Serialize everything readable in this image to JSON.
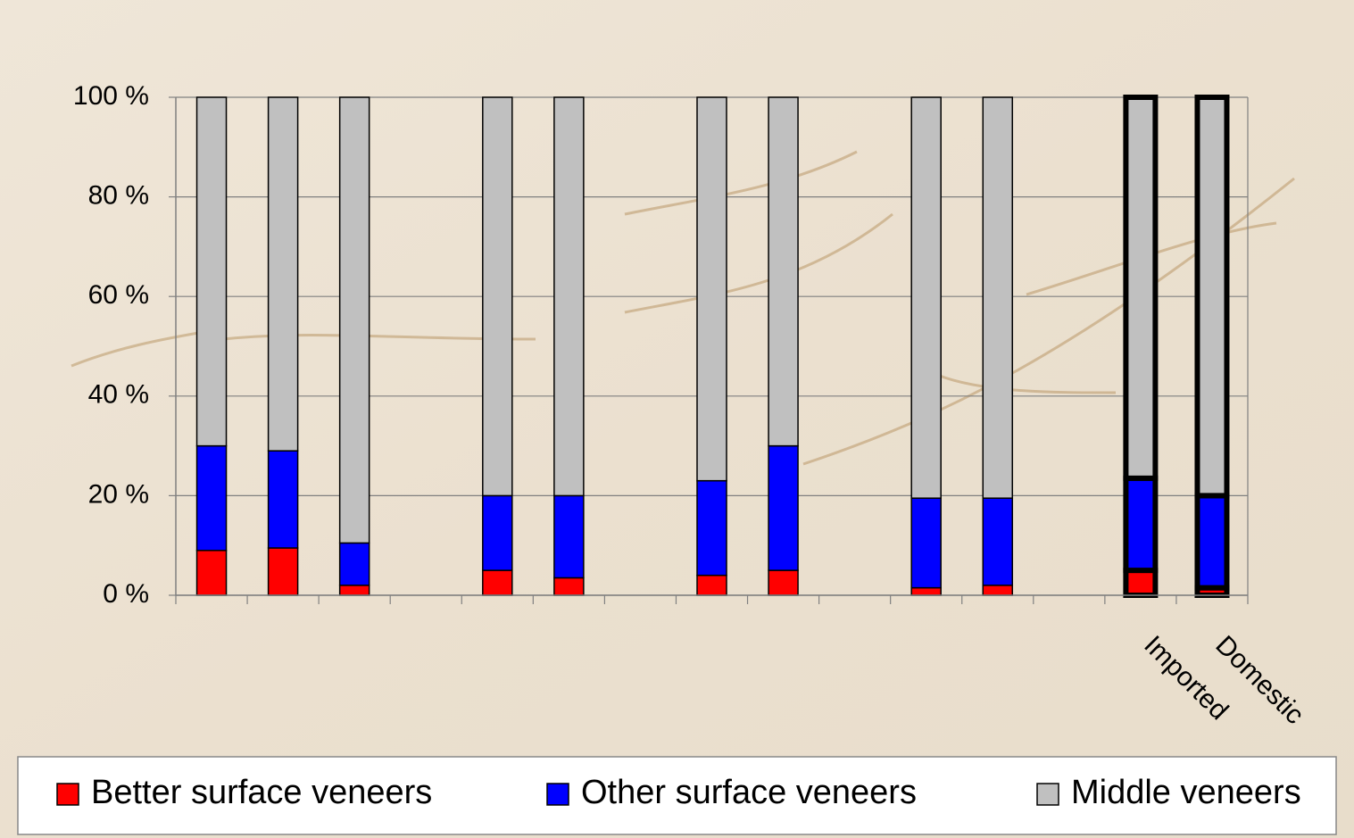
{
  "chart_data": {
    "type": "stacked-bar",
    "categories": [
      null,
      null,
      null,
      null,
      null,
      null,
      null,
      null,
      null,
      null,
      null,
      null,
      null,
      "Imported",
      "Domestic"
    ],
    "series": [
      {
        "name": "Better surface veneers",
        "color": "#ff0000",
        "values": [
          9,
          9.5,
          2,
          null,
          5,
          3.5,
          null,
          4,
          5,
          null,
          1.5,
          2,
          null,
          5,
          1.5
        ]
      },
      {
        "name": "Other surface veneers",
        "color": "#0000ff",
        "values": [
          21,
          19.5,
          8.5,
          null,
          15,
          16.5,
          null,
          19,
          25,
          null,
          18,
          17.5,
          null,
          18.5,
          18.5
        ]
      },
      {
        "name": "Middle veneers",
        "color": "#c0c0c0",
        "values": [
          70,
          71,
          89.5,
          null,
          80,
          80,
          null,
          77,
          70,
          null,
          80.5,
          80.5,
          null,
          76.5,
          80
        ]
      }
    ],
    "ylim": [
      0,
      100
    ],
    "yticks": [
      {
        "value": 0,
        "label": "0 %"
      },
      {
        "value": 20,
        "label": "20 %"
      },
      {
        "value": 40,
        "label": "40 %"
      },
      {
        "value": 60,
        "label": "60 %"
      },
      {
        "value": 80,
        "label": "80 %"
      },
      {
        "value": 100,
        "label": "100 %"
      }
    ],
    "grid": true
  }
}
